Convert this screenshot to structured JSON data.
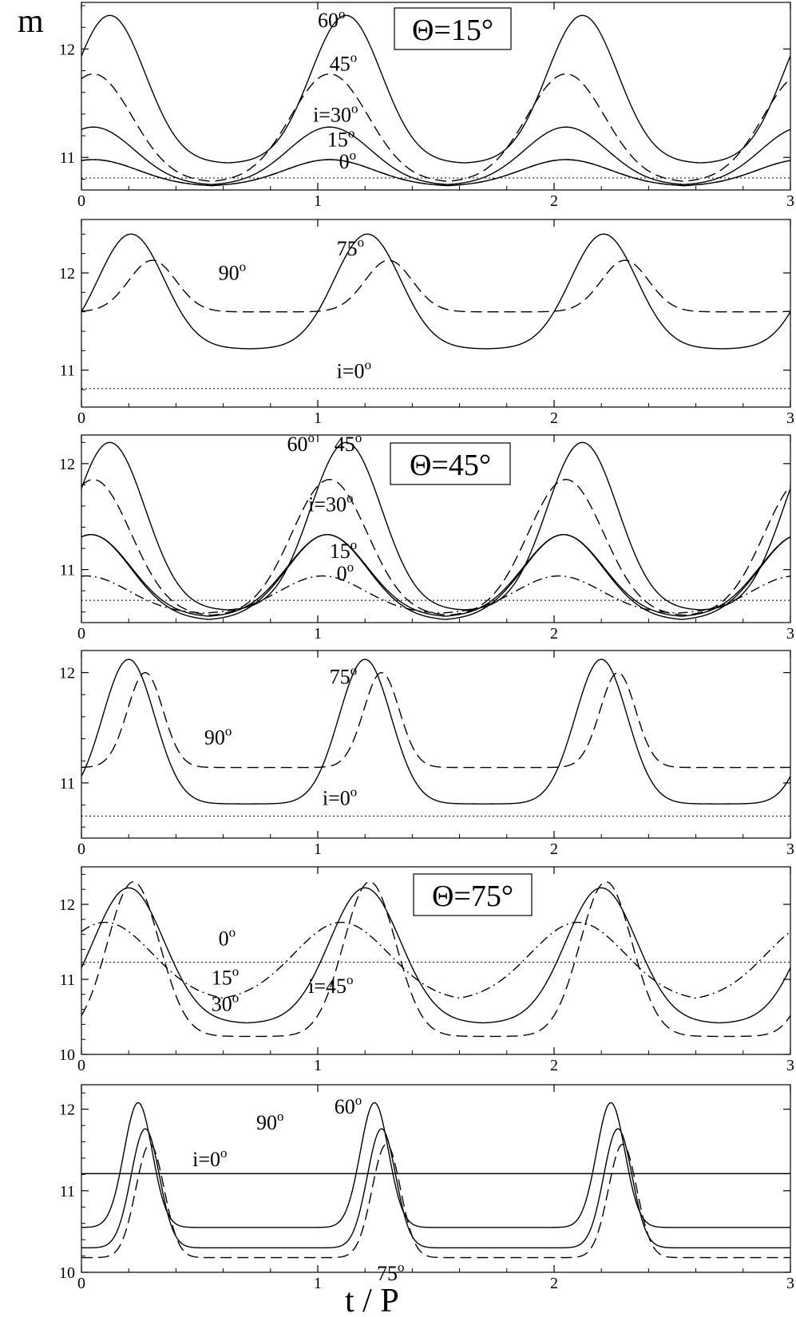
{
  "figure": {
    "ylabel": "m",
    "xlabel": "t / P"
  },
  "chart_data": [
    {
      "type": "line",
      "panel": 1,
      "box_label": "Θ=15°",
      "xlim": [
        0,
        3
      ],
      "ylim": [
        10.7,
        12.43
      ],
      "x_ticks": [
        "0",
        "1",
        "2",
        "3"
      ],
      "y_ticks": [
        "11",
        "12"
      ],
      "series": [
        {
          "label": "60°",
          "style": "solid",
          "peak": 12.31,
          "peak_phase": 0.12,
          "trough": 10.95,
          "trough_phase": 0.56,
          "width": 0.3
        },
        {
          "label": "45°",
          "style": "dashed",
          "peak": 11.77,
          "peak_phase": 0.05,
          "trough": 10.78,
          "trough_phase": 0.56,
          "width": 0.33
        },
        {
          "label": "i=30°",
          "style": "solid",
          "peak": 11.28,
          "peak_phase": 0.05,
          "trough": 10.75,
          "trough_phase": 0.56,
          "width": 0.35
        },
        {
          "label": "15°",
          "style": "solid",
          "peak": 10.98,
          "peak_phase": 0.05,
          "trough": 10.74,
          "trough_phase": 0.55,
          "width": 0.38
        },
        {
          "label": "0°",
          "style": "dashdot",
          "peak": 10.98,
          "peak_phase": 0.05,
          "trough": 10.74,
          "trough_phase": 0.55,
          "width": 0.38
        },
        {
          "label": "i=0° baseline",
          "style": "dotted",
          "constant": 10.81
        }
      ],
      "annotations": [
        {
          "text": "60",
          "sup": "o",
          "x": 1.0,
          "y": 12.2
        },
        {
          "text": "45",
          "sup": "o",
          "x": 1.05,
          "y": 11.8
        },
        {
          "text": "i=30",
          "sup": "o",
          "x": 0.98,
          "y": 11.33
        },
        {
          "text": "15",
          "sup": "o",
          "x": 1.04,
          "y": 11.1
        },
        {
          "text": "0",
          "sup": "o",
          "x": 1.09,
          "y": 10.9
        }
      ]
    },
    {
      "type": "line",
      "panel": 2,
      "xlim": [
        0,
        3
      ],
      "ylim": [
        10.62,
        12.55
      ],
      "x_ticks": [
        "0",
        "1",
        "2",
        "3"
      ],
      "y_ticks": [
        "11",
        "12"
      ],
      "series": [
        {
          "label": "75°",
          "style": "solid",
          "peak": 12.4,
          "peak_phase": 0.21,
          "trough": 11.22,
          "trough_phase": 0.56,
          "width": 0.28
        },
        {
          "label": "90°",
          "style": "dashed",
          "peak": 12.13,
          "peak_phase": 0.3,
          "trough": 11.6,
          "trough_phase": 0.56,
          "width": 0.2
        },
        {
          "label": "i=0°",
          "style": "dotted",
          "constant": 10.81
        }
      ],
      "annotations": [
        {
          "text": "75",
          "sup": "o",
          "x": 1.08,
          "y": 12.18
        },
        {
          "text": "90",
          "sup": "o",
          "x": 0.58,
          "y": 11.93
        },
        {
          "text": "i=0",
          "sup": "o",
          "x": 1.08,
          "y": 10.92
        }
      ]
    },
    {
      "type": "line",
      "panel": 3,
      "box_label": "Θ=45°",
      "xlim": [
        0,
        3
      ],
      "ylim": [
        10.5,
        12.27
      ],
      "x_ticks": [
        "0",
        "1",
        "2",
        "3"
      ],
      "y_ticks": [
        "11",
        "12"
      ],
      "series": [
        {
          "label": "60°",
          "style": "solid",
          "peak": 12.2,
          "peak_phase": 0.12,
          "trough": 10.62,
          "trough_phase": 0.54,
          "width": 0.3
        },
        {
          "label": "45°",
          "style": "dashed",
          "peak": 11.85,
          "peak_phase": 0.05,
          "trough": 10.57,
          "trough_phase": 0.54,
          "width": 0.32
        },
        {
          "label": "i=30°",
          "style": "solid",
          "peak": 11.33,
          "peak_phase": 0.04,
          "trough": 10.56,
          "trough_phase": 0.54,
          "width": 0.34
        },
        {
          "label": "15°",
          "style": "solid",
          "peak": 11.33,
          "peak_phase": 0.04,
          "trough": 10.53,
          "trough_phase": 0.54,
          "width": 0.34
        },
        {
          "label": "0°",
          "style": "dashdot",
          "peak": 10.94,
          "peak_phase": 0.02,
          "trough": 10.59,
          "trough_phase": 0.54,
          "width": 0.36
        },
        {
          "label": "i=0° baseline",
          "style": "dotted",
          "constant": 10.71
        }
      ],
      "annotations": [
        {
          "text": "60",
          "sup": "o",
          "x": 0.87,
          "y": 12.12
        },
        {
          "text": "45",
          "sup": "o",
          "x": 1.07,
          "y": 12.12
        },
        {
          "text": "i=30",
          "sup": "o",
          "x": 0.96,
          "y": 11.55
        },
        {
          "text": "15",
          "sup": "o",
          "x": 1.05,
          "y": 11.11
        },
        {
          "text": "0",
          "sup": "o",
          "x": 1.08,
          "y": 10.9
        }
      ]
    },
    {
      "type": "line",
      "panel": 4,
      "xlim": [
        0,
        3
      ],
      "ylim": [
        10.5,
        12.2
      ],
      "x_ticks": [
        "0",
        "1",
        "2",
        "3"
      ],
      "y_ticks": [
        "11",
        "12"
      ],
      "series": [
        {
          "label": "75°",
          "style": "solid",
          "peak": 12.12,
          "peak_phase": 0.2,
          "trough": 10.81,
          "trough_phase": 0.53,
          "width": 0.22
        },
        {
          "label": "90°",
          "style": "dashed",
          "peak": 12.0,
          "peak_phase": 0.27,
          "trough": 11.14,
          "trough_phase": 0.53,
          "width": 0.15
        },
        {
          "label": "i=0°",
          "style": "dotted",
          "constant": 10.7
        }
      ],
      "annotations": [
        {
          "text": "75",
          "sup": "o",
          "x": 1.05,
          "y": 11.9
        },
        {
          "text": "90",
          "sup": "o",
          "x": 0.52,
          "y": 11.35
        },
        {
          "text": "i=0",
          "sup": "o",
          "x": 1.02,
          "y": 10.8
        }
      ]
    },
    {
      "type": "line",
      "panel": 5,
      "box_label": "Θ=75°",
      "xlim": [
        0,
        3
      ],
      "ylim": [
        10,
        12.5
      ],
      "x_ticks": [
        "0",
        "1",
        "2",
        "3"
      ],
      "y_ticks": [
        "10",
        "11",
        "12"
      ],
      "series": [
        {
          "label": "30°",
          "style": "solid",
          "peak": 12.22,
          "peak_phase": 0.2,
          "trough": 10.42,
          "trough_phase": 0.55,
          "width": 0.3
        },
        {
          "label": "i=45°",
          "style": "dashed",
          "peak": 12.3,
          "peak_phase": 0.22,
          "trough": 10.24,
          "trough_phase": 0.55,
          "width": 0.22
        },
        {
          "label": "15°",
          "style": "dashdot",
          "peak": 11.76,
          "peak_phase": 0.1,
          "trough": 10.75,
          "trough_phase": 0.55,
          "width": 0.4
        },
        {
          "label": "0°",
          "style": "dotted",
          "constant": 11.23
        }
      ],
      "annotations": [
        {
          "text": "0",
          "sup": "o",
          "x": 0.58,
          "y": 11.45
        },
        {
          "text": "15",
          "sup": "o",
          "x": 0.55,
          "y": 10.93
        },
        {
          "text": "30",
          "sup": "o",
          "x": 0.55,
          "y": 10.58
        },
        {
          "text": "i=45",
          "sup": "o",
          "x": 0.96,
          "y": 10.82
        }
      ]
    },
    {
      "type": "line",
      "panel": 6,
      "xlim": [
        0,
        3
      ],
      "ylim": [
        10,
        12.3
      ],
      "x_ticks": [
        "0",
        "1",
        "2",
        "3"
      ],
      "y_ticks": [
        "10",
        "11",
        "12"
      ],
      "series": [
        {
          "label": "60°",
          "style": "solid",
          "peak": 12.08,
          "peak_phase": 0.24,
          "trough": 10.55,
          "trough_phase": 0.53,
          "width": 0.12
        },
        {
          "label": "75°",
          "style": "solid",
          "peak": 11.76,
          "peak_phase": 0.27,
          "trough": 10.3,
          "trough_phase": 0.53,
          "width": 0.12
        },
        {
          "label": "90°",
          "style": "dashed",
          "peak": 11.57,
          "peak_phase": 0.29,
          "trough": 10.18,
          "trough_phase": 0.53,
          "width": 0.12
        },
        {
          "label": "i=0°",
          "style": "solid",
          "constant": 11.21
        }
      ],
      "annotations": [
        {
          "text": "60",
          "sup": "o",
          "x": 1.07,
          "y": 11.95
        },
        {
          "text": "90",
          "sup": "o",
          "x": 0.74,
          "y": 11.75
        },
        {
          "text": "i=0",
          "sup": "o",
          "x": 0.47,
          "y": 11.3
        },
        {
          "text": "75",
          "sup": "o",
          "x": 1.25,
          "y": 9.9
        }
      ]
    }
  ]
}
